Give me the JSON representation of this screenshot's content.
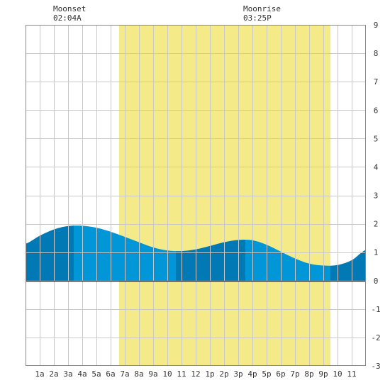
{
  "moon_events": [
    {
      "label": "Moonset",
      "time": "02:04A"
    },
    {
      "label": "Moonrise",
      "time": "03:25P"
    }
  ],
  "colors": {
    "daylight": "#f4ea88",
    "water_light": "#0096d8",
    "water_dark": "#0079b5",
    "grid": "#c8c8c8",
    "border": "#888888"
  },
  "chart_data": {
    "type": "area",
    "title": "",
    "xlabel": "",
    "ylabel": "",
    "x_range_hours": [
      -1,
      23
    ],
    "ylim": [
      -3,
      9
    ],
    "grid": true,
    "x_tick_labels": [
      "1a",
      "2a",
      "3a",
      "4a",
      "5a",
      "6a",
      "7a",
      "8a",
      "9a",
      "10",
      "11",
      "12",
      "1p",
      "2p",
      "3p",
      "4p",
      "5p",
      "6p",
      "7p",
      "8p",
      "9p",
      "10",
      "11"
    ],
    "y_tick_labels": [
      "-3",
      "-2",
      "-1",
      "0",
      "1",
      "2",
      "3",
      "4",
      "5",
      "6",
      "7",
      "8",
      "9"
    ],
    "daylight_hours": [
      5.6,
      20.5
    ],
    "tide_series": {
      "hours": [
        -1,
        0,
        1,
        2,
        3,
        4,
        5,
        6,
        7,
        8,
        9,
        10,
        11,
        12,
        13,
        14,
        15,
        16,
        17,
        18,
        19,
        20,
        21,
        22,
        23
      ],
      "heights": [
        1.3,
        1.58,
        1.8,
        1.92,
        1.93,
        1.86,
        1.72,
        1.54,
        1.35,
        1.17,
        1.06,
        1.04,
        1.1,
        1.22,
        1.35,
        1.43,
        1.42,
        1.26,
        1.02,
        0.78,
        0.6,
        0.53,
        0.55,
        0.72,
        1.08
      ]
    },
    "tide_extremes": [
      {
        "type": "high",
        "hour": 2.4,
        "height": 1.93
      },
      {
        "type": "low",
        "hour": 9.6,
        "height": 1.04
      },
      {
        "type": "high",
        "hour": 14.5,
        "height": 1.44
      },
      {
        "type": "low",
        "hour": 20.5,
        "height": 0.53
      }
    ]
  }
}
